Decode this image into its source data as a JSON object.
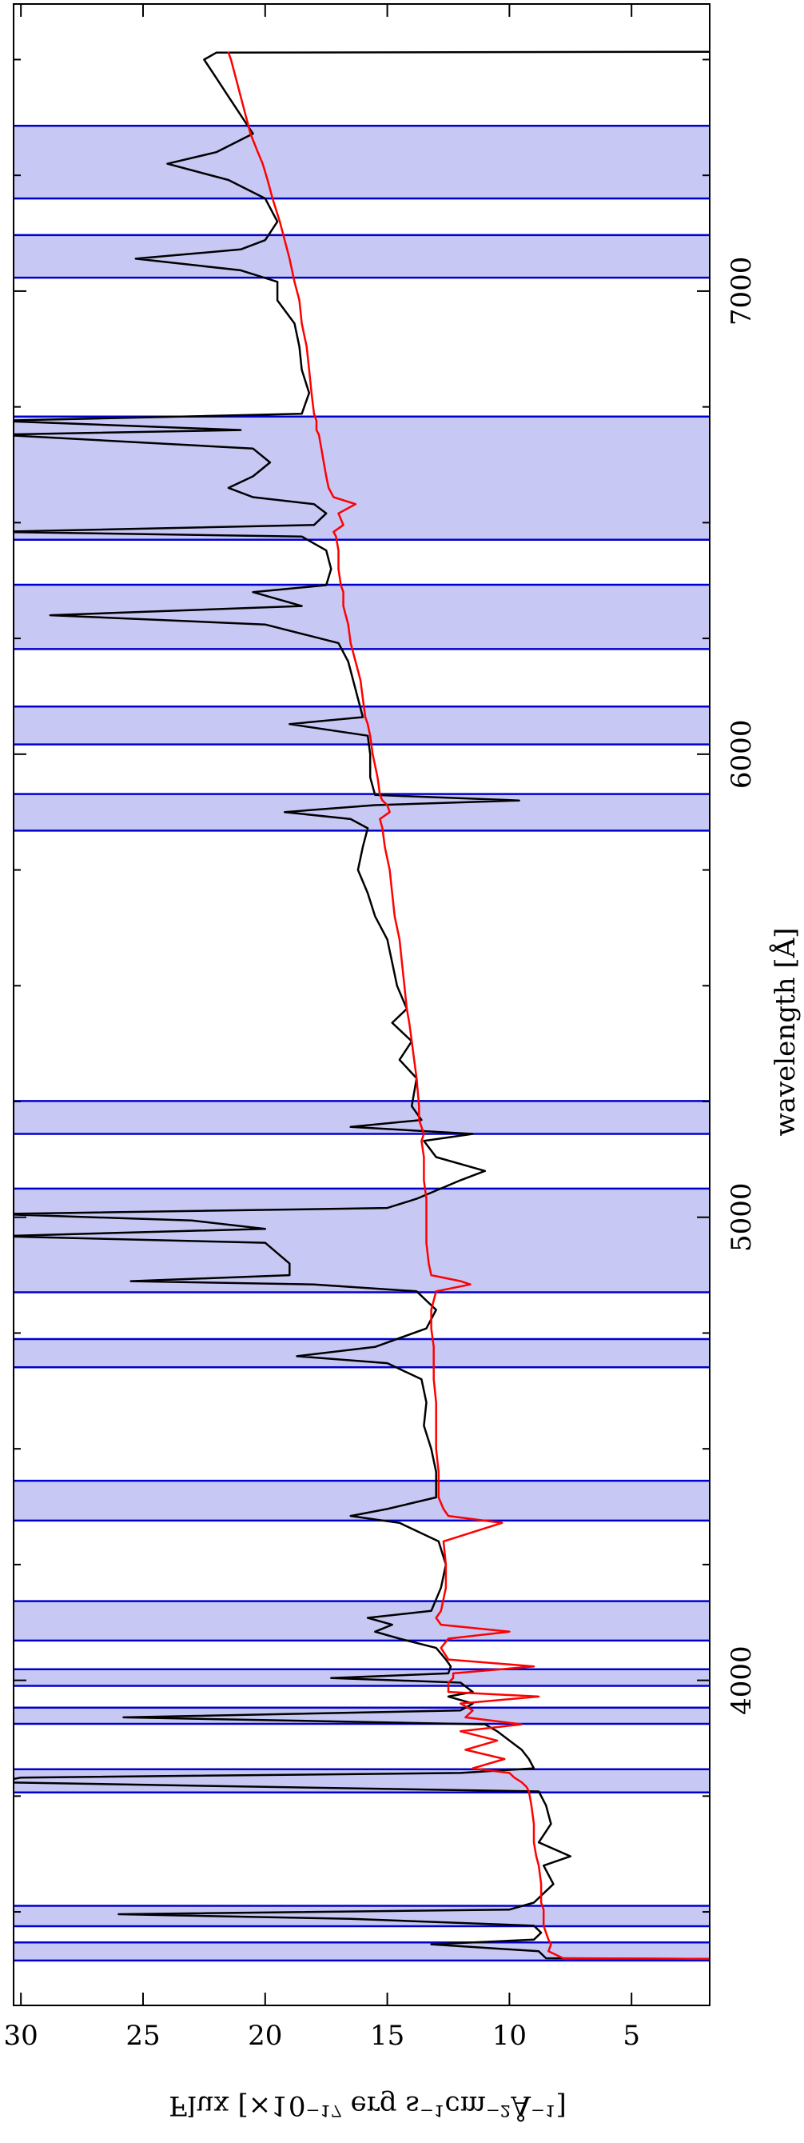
{
  "chart_data": {
    "type": "line",
    "xlabel": "wavelength [Å]",
    "ylabel": "Flux [×10⁻¹⁷ erg s⁻¹cm⁻²Å⁻¹]",
    "xlim": [
      3298,
      7620
    ],
    "ylim": [
      1.8,
      30.3
    ],
    "xticks": [
      4000,
      5000,
      6000,
      7000
    ],
    "xminorticks": [
      3500,
      3750,
      4250,
      4500,
      4750,
      5250,
      5500,
      5750,
      6250,
      6500,
      6750,
      7250,
      7500
    ],
    "yticks": [
      5,
      10,
      15,
      20,
      25,
      30
    ],
    "band_color": "#c8c8f5",
    "band_edge_color": "#0000cc",
    "bands": [
      [
        3395,
        3434
      ],
      [
        3469,
        3513
      ],
      [
        3758,
        3808
      ],
      [
        3906,
        3941
      ],
      [
        3988,
        4024
      ],
      [
        4086,
        4171
      ],
      [
        4345,
        4431
      ],
      [
        4676,
        4737
      ],
      [
        4838,
        5062
      ],
      [
        5180,
        5251
      ],
      [
        5835,
        5914
      ],
      [
        6021,
        6103
      ],
      [
        6227,
        6366
      ],
      [
        6463,
        6729
      ],
      [
        7029,
        7121
      ],
      [
        7200,
        7357
      ]
    ],
    "x": [
      3398,
      3400,
      3415,
      3430,
      3440,
      3455,
      3470,
      3485,
      3495,
      3505,
      3520,
      3560,
      3600,
      3620,
      3650,
      3690,
      3730,
      3760,
      3770,
      3780,
      3790,
      3800,
      3810,
      3830,
      3850,
      3870,
      3890,
      3905,
      3920,
      3935,
      3950,
      3965,
      3975,
      3995,
      4005,
      4015,
      4030,
      4045,
      4070,
      4090,
      4105,
      4120,
      4135,
      4150,
      4200,
      4250,
      4300,
      4340,
      4355,
      4370,
      4395,
      4450,
      4500,
      4550,
      4600,
      4650,
      4685,
      4700,
      4720,
      4760,
      4800,
      4840,
      4855,
      4862,
      4875,
      4900,
      4945,
      4959,
      4975,
      4993,
      5007,
      5020,
      5040,
      5080,
      5100,
      5130,
      5165,
      5180,
      5195,
      5210,
      5240,
      5300,
      5340,
      5380,
      5420,
      5450,
      5500,
      5550,
      5600,
      5650,
      5700,
      5750,
      5800,
      5840,
      5860,
      5875,
      5890,
      5900,
      5912,
      5950,
      6000,
      6040,
      6065,
      6080,
      6120,
      6160,
      6200,
      6240,
      6280,
      6300,
      6320,
      6350,
      6365,
      6400,
      6440,
      6470,
      6480,
      6495,
      6520,
      6540,
      6555,
      6575,
      6600,
      6630,
      6660,
      6690,
      6700,
      6720,
      6735,
      6780,
      6830,
      6880,
      6930,
      6980,
      7020,
      7045,
      7070,
      7090,
      7110,
      7150,
      7200,
      7240,
      7275,
      7300,
      7340,
      7380,
      7420,
      7460,
      7500,
      7515,
      7517
    ],
    "series": [
      {
        "color": "#000000",
        "values": [
          0,
          8.5,
          8.8,
          13.2,
          9.0,
          8.7,
          9.0,
          16.5,
          26.0,
          10,
          9.0,
          8.2,
          8.6,
          7.5,
          8.8,
          8.3,
          8.5,
          8.8,
          20,
          31,
          30,
          12,
          9.0,
          9.2,
          9.5,
          10,
          10.5,
          11,
          25.8,
          12,
          11.5,
          12.5,
          11.5,
          12,
          17.3,
          12.5,
          12.4,
          12.6,
          13,
          14.5,
          15.5,
          14.8,
          15.8,
          13.2,
          12.8,
          12.6,
          12.9,
          14.5,
          16.5,
          15.0,
          13.0,
          13.0,
          13.2,
          13.5,
          13.4,
          13.6,
          15.0,
          18.7,
          15.5,
          13.4,
          13.0,
          13.8,
          18,
          25.5,
          19,
          19,
          20,
          31,
          20,
          23,
          31,
          15,
          13.8,
          12.0,
          11.0,
          13.0,
          13.5,
          11.5,
          16.5,
          13.6,
          14.0,
          13.8,
          14.5,
          14.0,
          14.8,
          14.2,
          14.6,
          14.8,
          15.0,
          15.5,
          15.8,
          16.2,
          16.0,
          15.8,
          16.5,
          19.2,
          15.5,
          9.6,
          15.5,
          15.7,
          15.7,
          15.8,
          19.0,
          16.0,
          16.2,
          16.4,
          16.6,
          17.0,
          20,
          28.8,
          18.5,
          20.5,
          17.5,
          17.3,
          17.5,
          18.5,
          31,
          18.0,
          17.5,
          18,
          20.5,
          21.5,
          20.5,
          19.8,
          20.5,
          31,
          21,
          31,
          18.5,
          18.2,
          18.5,
          18.6,
          18.8,
          19.5,
          19.5,
          21,
          25.3,
          21,
          20,
          19.5,
          20.0,
          21.5,
          24.0,
          22.0,
          20.5,
          21,
          21.5,
          22.0,
          22.5,
          22.0,
          0
        ]
      },
      {
        "color": "#ff0000",
        "values": [
          0,
          7.8,
          8.4,
          8.3,
          8.4,
          8.5,
          8.6,
          8.6,
          8.6,
          8.6,
          8.7,
          8.7,
          8.8,
          8.9,
          9.0,
          9.0,
          9.1,
          9.2,
          9.3,
          9.5,
          9.8,
          10,
          11.5,
          10.2,
          11.8,
          10.5,
          12,
          9.5,
          11.8,
          11.5,
          12,
          8.8,
          12.5,
          12.5,
          12.3,
          12.3,
          9,
          12.5,
          12.8,
          12.5,
          10.0,
          12.8,
          13,
          12.8,
          12.6,
          12.6,
          12.7,
          10.3,
          12.5,
          12.7,
          12.9,
          12.9,
          13.0,
          13.0,
          13.0,
          13.1,
          13.1,
          13.1,
          13.1,
          13.2,
          13.2,
          13.0,
          11.6,
          12.0,
          13.2,
          13.3,
          13.4,
          13.4,
          13.4,
          13.4,
          13.4,
          13.4,
          13.4,
          13.5,
          13.5,
          13.5,
          13.6,
          13.5,
          13.6,
          13.7,
          13.7,
          13.8,
          13.9,
          14.0,
          14.1,
          14.2,
          14.3,
          14.4,
          14.5,
          14.7,
          14.8,
          14.9,
          15.1,
          15.2,
          15.3,
          14.9,
          15.0,
          15.2,
          15.3,
          15.4,
          15.6,
          15.7,
          15.8,
          15.9,
          16.0,
          16.1,
          16.3,
          16.5,
          16.6,
          16.7,
          16.8,
          16.8,
          16.9,
          17.0,
          17.0,
          17.1,
          17.2,
          16.8,
          17.0,
          16.3,
          17.2,
          17.4,
          17.5,
          17.6,
          17.7,
          17.8,
          17.9,
          17.9,
          18.0,
          18.1,
          18.2,
          18.3,
          18.5,
          18.6,
          18.8,
          18.9,
          19.0,
          19.1,
          19.2,
          19.4,
          19.7,
          19.9,
          20.1,
          20.3,
          20.6,
          20.8,
          21.0,
          21.2,
          21.4,
          21.5,
          21.5
        ]
      }
    ]
  }
}
